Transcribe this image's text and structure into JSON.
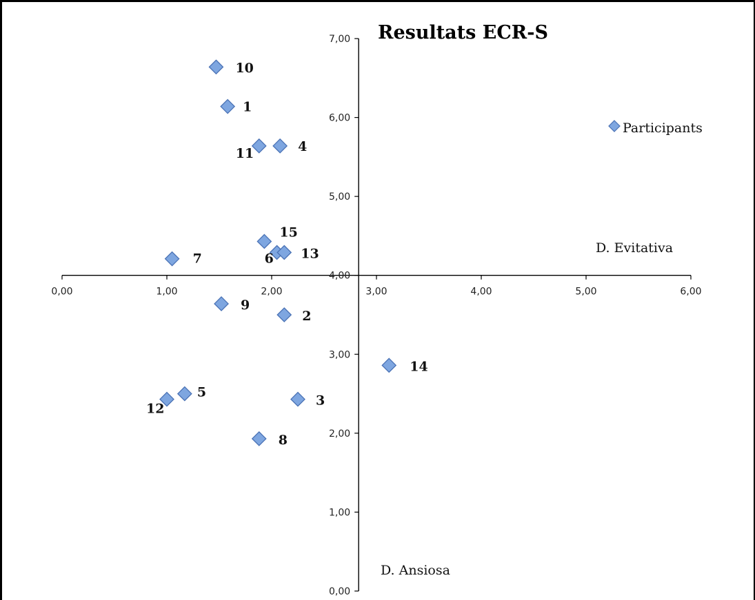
{
  "chart_data": {
    "type": "scatter",
    "title": "Resultats ECR-S",
    "xlabel": "D. Evitativa",
    "ylabel": "D. Ansiosa",
    "xlim": [
      0,
      6
    ],
    "ylim": [
      0,
      7
    ],
    "x_ticks": [
      "0,00",
      "1,00",
      "2,00",
      "3,00",
      "4,00",
      "5,00",
      "6,00"
    ],
    "y_ticks": [
      "0,00",
      "1,00",
      "2,00",
      "3,00",
      "4,00",
      "5,00",
      "6,00",
      "7,00"
    ],
    "axes_cross": {
      "x": 2.83,
      "y": 4.0
    },
    "grid": false,
    "legend": {
      "position": "right",
      "entries": [
        "Participants"
      ]
    },
    "series": [
      {
        "name": "Participants",
        "color": "#7ea6e0",
        "points": [
          {
            "label": "1",
            "x": 1.58,
            "y": 6.14
          },
          {
            "label": "2",
            "x": 2.12,
            "y": 3.5
          },
          {
            "label": "3",
            "x": 2.25,
            "y": 2.43
          },
          {
            "label": "4",
            "x": 2.08,
            "y": 5.64
          },
          {
            "label": "5",
            "x": 1.17,
            "y": 2.5
          },
          {
            "label": "6",
            "x": 2.05,
            "y": 4.29
          },
          {
            "label": "7",
            "x": 1.05,
            "y": 4.21
          },
          {
            "label": "8",
            "x": 1.88,
            "y": 1.93
          },
          {
            "label": "9",
            "x": 1.52,
            "y": 3.64
          },
          {
            "label": "10",
            "x": 1.47,
            "y": 6.64
          },
          {
            "label": "11",
            "x": 1.88,
            "y": 5.64
          },
          {
            "label": "12",
            "x": 1.0,
            "y": 2.43
          },
          {
            "label": "13",
            "x": 2.12,
            "y": 4.29
          },
          {
            "label": "14",
            "x": 3.12,
            "y": 2.86
          },
          {
            "label": "15",
            "x": 1.93,
            "y": 4.43
          }
        ]
      }
    ]
  }
}
